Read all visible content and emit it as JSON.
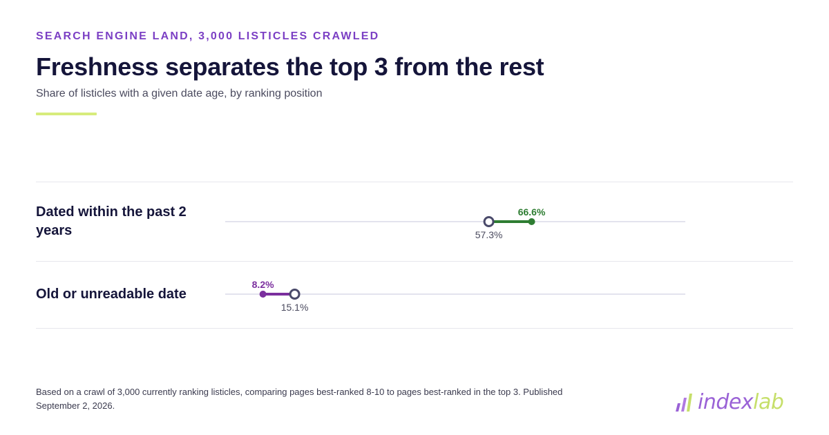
{
  "header": {
    "eyebrow": "SEARCH ENGINE LAND, 3,000 LISTICLES CRAWLED",
    "title": "Freshness separates the top 3 from the rest",
    "subtitle": "Share of listicles with a given date age, by ranking position"
  },
  "colors": {
    "eyebrow": "#7b3fc4",
    "accent_bar": "#d7ec7c",
    "green": "#2e7d32",
    "purple": "#7b2f9e",
    "hollow_stroke": "#4a4a6a",
    "track": "#e3e3ee"
  },
  "chart_data": {
    "type": "dumbbell",
    "title": "Freshness separates the top 3 from the rest",
    "subtitle": "Share of listicles with a given date age, by ranking position",
    "unit": "%",
    "xlim": [
      0,
      100
    ],
    "grid": false,
    "categories": [
      "Dated within the past 2 years",
      "Old or unreadable date"
    ],
    "rows": [
      {
        "label": "Dated within the past 2 years",
        "hollow_value": 57.3,
        "hollow_label": "57.3%",
        "filled_value": 66.6,
        "filled_label": "66.6%",
        "filled_color": "#2e7d32"
      },
      {
        "label": "Old or unreadable date",
        "hollow_value": 15.1,
        "hollow_label": "15.1%",
        "filled_value": 8.2,
        "filled_label": "8.2%",
        "filled_color": "#7b2f9e"
      }
    ]
  },
  "footer": {
    "note": "Based on a crawl of 3,000 currently ranking listicles, comparing pages best-ranked 8-10 to pages best-ranked in the top 3. Published September 2, 2026.",
    "logo_part1": "index",
    "logo_part2": "lab",
    "logo_icon": "bars-logo-icon"
  }
}
